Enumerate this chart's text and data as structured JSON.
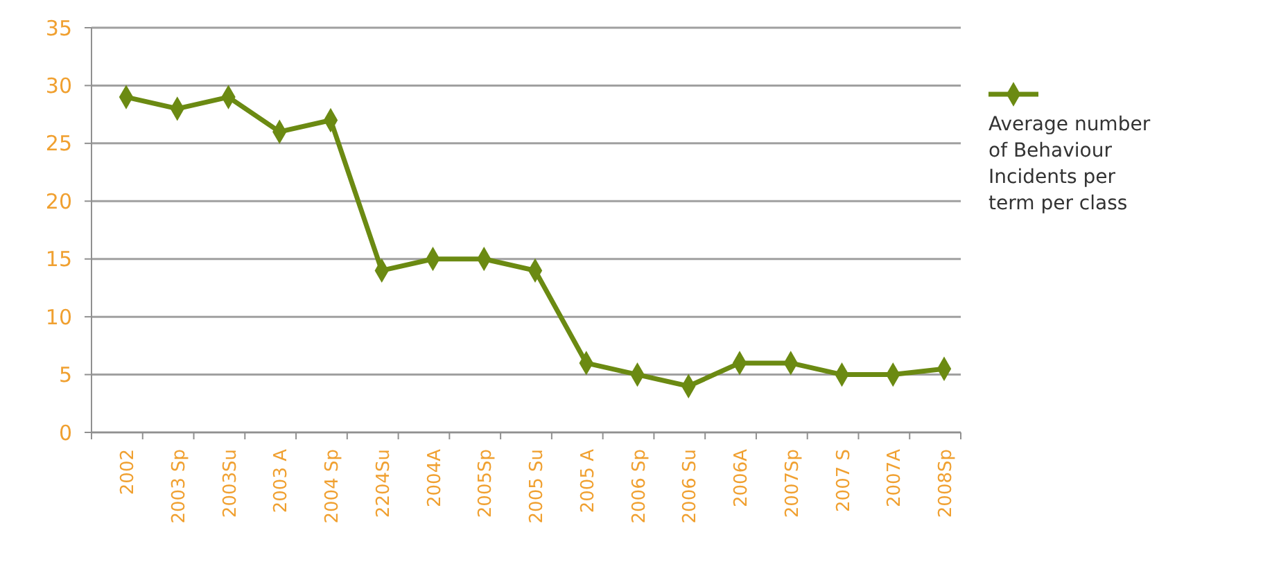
{
  "chart_data": {
    "type": "line",
    "categories": [
      "2002",
      "2003 Sp",
      "2003Su",
      "2003 A",
      "2004 Sp",
      "2204Su",
      "2004A",
      "2005Sp",
      "2005 Su",
      "2005 A",
      "2006 Sp",
      "2006 Su",
      "2006A",
      "2007Sp",
      "2007 S",
      "2007A",
      "2008Sp"
    ],
    "series": [
      {
        "name": "Average number of Behaviour Incidents per term per class",
        "color": "#6b8a12",
        "values": [
          29,
          28,
          29,
          26,
          27,
          14,
          15,
          15,
          14,
          6,
          5,
          4,
          6,
          6,
          5,
          5,
          5.5
        ]
      }
    ],
    "ylim": [
      0,
      35
    ],
    "yticks": [
      0,
      5,
      10,
      15,
      20,
      25,
      30,
      35
    ],
    "grid": "y",
    "legend": "right",
    "marker": "diamond",
    "line_style": "solid"
  }
}
